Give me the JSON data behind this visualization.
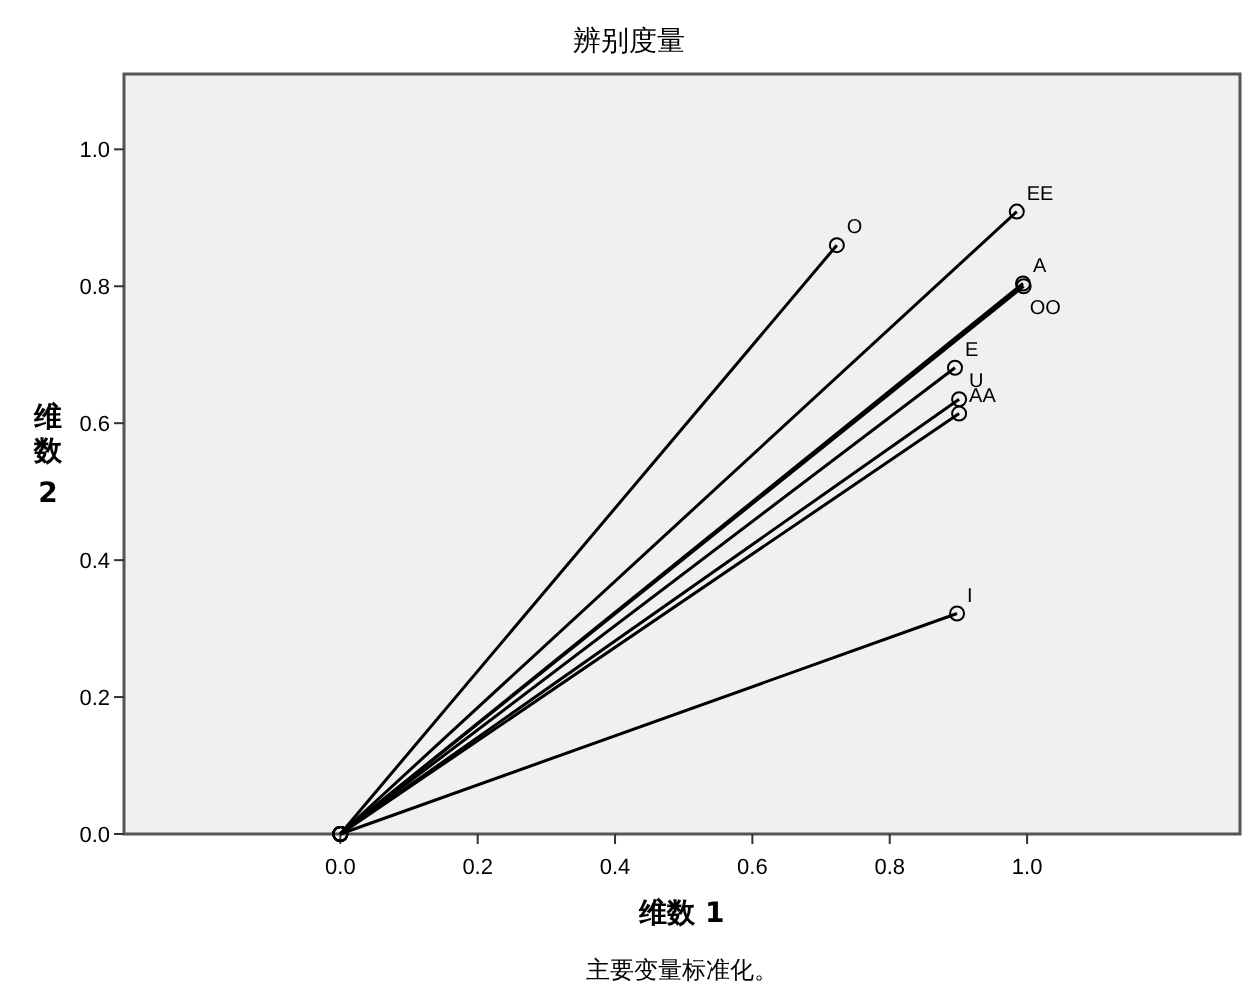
{
  "chart_data": {
    "type": "line",
    "title": "辨别度量",
    "xlabel": "维数 1",
    "ylabel": "维数 2",
    "annotations": [
      "主要变量标准化。"
    ],
    "xlim": [
      -0.315,
      1.31
    ],
    "ylim": [
      0,
      1.11
    ],
    "xticks": [
      {
        "value": 0,
        "label": "0.0"
      },
      0.2,
      0.4,
      0.6,
      0.8,
      {
        "value": 1,
        "label": "1.0"
      }
    ],
    "yticks": [
      {
        "value": 0,
        "label": "0.0"
      },
      0.2,
      0.4,
      0.6,
      0.8,
      {
        "value": 1,
        "label": "1.0"
      }
    ],
    "marker": "circle",
    "line_style": "solid",
    "grid": false,
    "series": [
      {
        "name": "O",
        "color": "#000000",
        "x": [
          0,
          0.723
        ],
        "values": [
          0,
          0.86
        ]
      },
      {
        "name": "EE",
        "color": "#000000",
        "x": [
          0,
          0.985
        ],
        "values": [
          0,
          0.909
        ]
      },
      {
        "name": "A",
        "color": "#000000",
        "x": [
          0,
          0.994
        ],
        "values": [
          0,
          0.804
        ]
      },
      {
        "name": "OO",
        "color": "#000000",
        "x": [
          0,
          0.995
        ],
        "values": [
          0,
          0.8
        ]
      },
      {
        "name": "E",
        "color": "#000000",
        "x": [
          0,
          0.895
        ],
        "values": [
          0,
          0.681
        ]
      },
      {
        "name": "U",
        "color": "#000000",
        "x": [
          0,
          0.901
        ],
        "values": [
          0,
          0.635
        ]
      },
      {
        "name": "AA",
        "color": "#000000",
        "x": [
          0,
          0.901
        ],
        "values": [
          0,
          0.614
        ]
      },
      {
        "name": "I",
        "color": "#000000",
        "x": [
          0,
          0.898
        ],
        "values": [
          0,
          0.322
        ]
      }
    ]
  }
}
